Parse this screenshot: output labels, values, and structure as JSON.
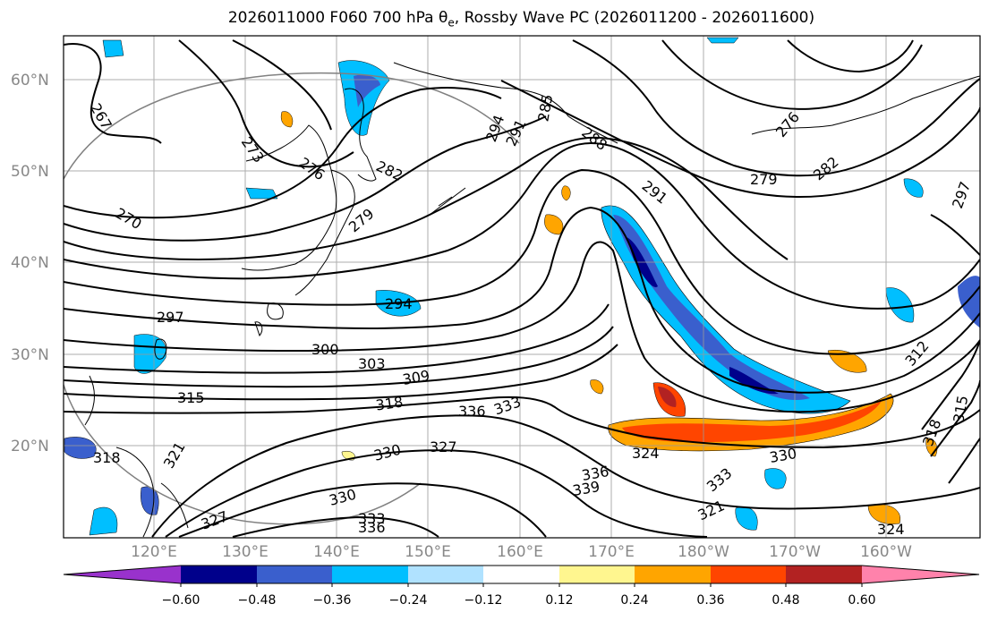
{
  "title": {
    "main": "2026011000 F060 700 hPa θ",
    "sub": "e",
    "rest": ", Rossby Wave PC (2026011200 - 2026011600)"
  },
  "lat_labels": [
    "60°N",
    "50°N",
    "40°N",
    "30°N",
    "20°N"
  ],
  "lon_labels": [
    "120°E",
    "130°E",
    "140°E",
    "150°E",
    "160°E",
    "170°E",
    "180°W",
    "170°W",
    "160°W"
  ],
  "contour_labels": [
    "267",
    "273",
    "276",
    "270",
    "282",
    "279",
    "285",
    "294",
    "291",
    "288",
    "291",
    "276",
    "279",
    "282",
    "297",
    "294",
    "297",
    "300",
    "303",
    "309",
    "315",
    "318",
    "336",
    "333",
    "330",
    "327",
    "324",
    "330",
    "318",
    "321",
    "333",
    "336",
    "339",
    "330",
    "333",
    "336",
    "327",
    "315",
    "318",
    "321",
    "324",
    "312"
  ],
  "colorbar": {
    "ticks": [
      "−0.60",
      "−0.48",
      "−0.36",
      "−0.24",
      "−0.12",
      "0.12",
      "0.24",
      "0.36",
      "0.48",
      "0.60"
    ],
    "colors": [
      "#9932cc",
      "#00008b",
      "#3a5fcd",
      "#00bfff",
      "#b0e2ff",
      "#ffffff",
      "#fff68f",
      "#ffa500",
      "#ff4500",
      "#b22222",
      "#ff82ab"
    ]
  }
}
